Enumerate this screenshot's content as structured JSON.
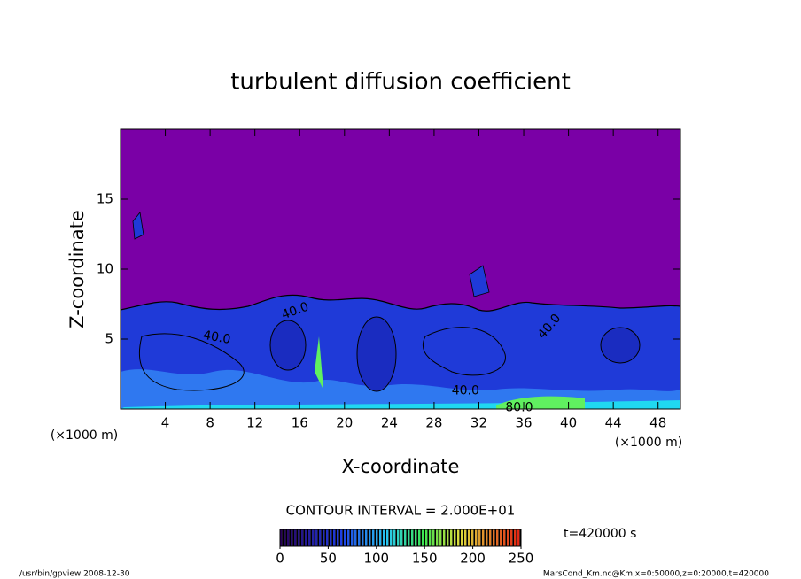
{
  "chart_data": {
    "type": "contour",
    "title": "turbulent diffusion coefficient",
    "xlabel": "X-coordinate",
    "ylabel": "Z-coordinate",
    "x_unit": "(×1000 m)",
    "xlim": [
      0,
      50
    ],
    "xticks": [
      4,
      8,
      12,
      16,
      20,
      24,
      28,
      32,
      36,
      40,
      44,
      48
    ],
    "ylim": [
      0,
      20
    ],
    "yticks": [
      5,
      10,
      15
    ],
    "contour_interval": "CONTOUR INTERVAL = 2.000E+01",
    "time_label": "t=420000 s",
    "colorbar": {
      "lim": [
        0,
        250
      ],
      "ticks": [
        0,
        50,
        100,
        150,
        200,
        250
      ]
    },
    "contour_labels": [
      {
        "text": "40.0",
        "x": 15.6,
        "z": 7.0,
        "angle": -20
      },
      {
        "text": "40.0",
        "x": 8.6,
        "z": 5.1,
        "angle": 10
      },
      {
        "text": "40.0",
        "x": 30.8,
        "z": 1.3,
        "angle": 0
      },
      {
        "text": "40.0",
        "x": 38.3,
        "z": 5.9,
        "angle": -50
      },
      {
        "text": "80.0",
        "x": 35.6,
        "z": 0.1,
        "angle": 0
      }
    ],
    "footer_left": "/usr/bin/gpview  2008-12-30",
    "footer_right": "MarsCond_Km.nc@Km,x=0:50000,z=0:20000,t=420000"
  }
}
